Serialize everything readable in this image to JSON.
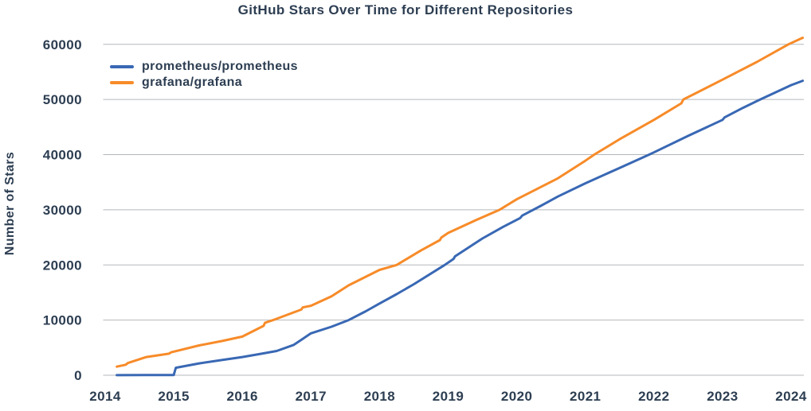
{
  "title": "GitHub Stars Over Time for Different Repositories",
  "y_axis": {
    "label": "Number of Stars",
    "ticks": [
      "0",
      "10000",
      "20000",
      "30000",
      "40000",
      "50000",
      "60000"
    ]
  },
  "x_axis": {
    "ticks": [
      "2014",
      "2015",
      "2016",
      "2017",
      "2018",
      "2019",
      "2020",
      "2021",
      "2022",
      "2023",
      "2024"
    ]
  },
  "legend": {
    "items": [
      {
        "label": "prometheus/prometheus"
      },
      {
        "label": "grafana/grafana"
      }
    ]
  },
  "colors": {
    "text": "#2d3e52",
    "gridline": "#b3b7bb",
    "prometheus": "#3968b4",
    "grafana": "#f78b29",
    "background": "#ffffff"
  },
  "chart_data": {
    "type": "line",
    "title": "GitHub Stars Over Time for Different Repositories",
    "xlabel": "",
    "ylabel": "Number of Stars",
    "xlim": [
      2013.98,
      2024.25
    ],
    "ylim": [
      0,
      62000
    ],
    "grid": "horizontal",
    "legend_position": "upper-left",
    "series": [
      {
        "name": "prometheus/prometheus",
        "color": "#3968b4",
        "points": [
          [
            2014.17,
            20
          ],
          [
            2014.6,
            30
          ],
          [
            2015.0,
            40
          ],
          [
            2015.03,
            1350
          ],
          [
            2015.2,
            1750
          ],
          [
            2015.37,
            2150
          ],
          [
            2015.7,
            2750
          ],
          [
            2016.0,
            3300
          ],
          [
            2016.3,
            3950
          ],
          [
            2016.5,
            4400
          ],
          [
            2016.75,
            5500
          ],
          [
            2017.0,
            7600
          ],
          [
            2017.3,
            8800
          ],
          [
            2017.55,
            10000
          ],
          [
            2017.8,
            11600
          ],
          [
            2018.0,
            13000
          ],
          [
            2018.25,
            14700
          ],
          [
            2018.5,
            16500
          ],
          [
            2018.95,
            20000
          ],
          [
            2019.08,
            21100
          ],
          [
            2019.1,
            21550
          ],
          [
            2019.5,
            24800
          ],
          [
            2019.8,
            26900
          ],
          [
            2020.05,
            28500
          ],
          [
            2020.08,
            28950
          ],
          [
            2020.35,
            30700
          ],
          [
            2020.6,
            32400
          ],
          [
            2021.0,
            34800
          ],
          [
            2021.5,
            37600
          ],
          [
            2021.93,
            40000
          ],
          [
            2022.0,
            40400
          ],
          [
            2022.5,
            43400
          ],
          [
            2023.0,
            46300
          ],
          [
            2023.03,
            46750
          ],
          [
            2023.3,
            48500
          ],
          [
            2023.55,
            50000
          ],
          [
            2024.0,
            52600
          ],
          [
            2024.17,
            53400
          ]
        ]
      },
      {
        "name": "grafana/grafana",
        "color": "#f78b29",
        "points": [
          [
            2014.17,
            1550
          ],
          [
            2014.3,
            1900
          ],
          [
            2014.33,
            2200
          ],
          [
            2014.6,
            3300
          ],
          [
            2014.93,
            3900
          ],
          [
            2014.96,
            4150
          ],
          [
            2015.37,
            5400
          ],
          [
            2015.7,
            6200
          ],
          [
            2016.0,
            7000
          ],
          [
            2016.31,
            8950
          ],
          [
            2016.33,
            9500
          ],
          [
            2016.45,
            10000
          ],
          [
            2016.86,
            11900
          ],
          [
            2016.88,
            12300
          ],
          [
            2017.0,
            12600
          ],
          [
            2017.3,
            14300
          ],
          [
            2017.55,
            16300
          ],
          [
            2018.0,
            19100
          ],
          [
            2018.25,
            20000
          ],
          [
            2018.6,
            22600
          ],
          [
            2018.88,
            24500
          ],
          [
            2018.9,
            24950
          ],
          [
            2019.0,
            25800
          ],
          [
            2019.4,
            28100
          ],
          [
            2019.75,
            30000
          ],
          [
            2020.0,
            31900
          ],
          [
            2020.6,
            35700
          ],
          [
            2021.0,
            38900
          ],
          [
            2021.13,
            40000
          ],
          [
            2021.5,
            42800
          ],
          [
            2022.0,
            46300
          ],
          [
            2022.4,
            49300
          ],
          [
            2022.43,
            50000
          ],
          [
            2023.0,
            53600
          ],
          [
            2023.5,
            56800
          ],
          [
            2023.96,
            60000
          ],
          [
            2024.17,
            61200
          ]
        ]
      }
    ]
  }
}
